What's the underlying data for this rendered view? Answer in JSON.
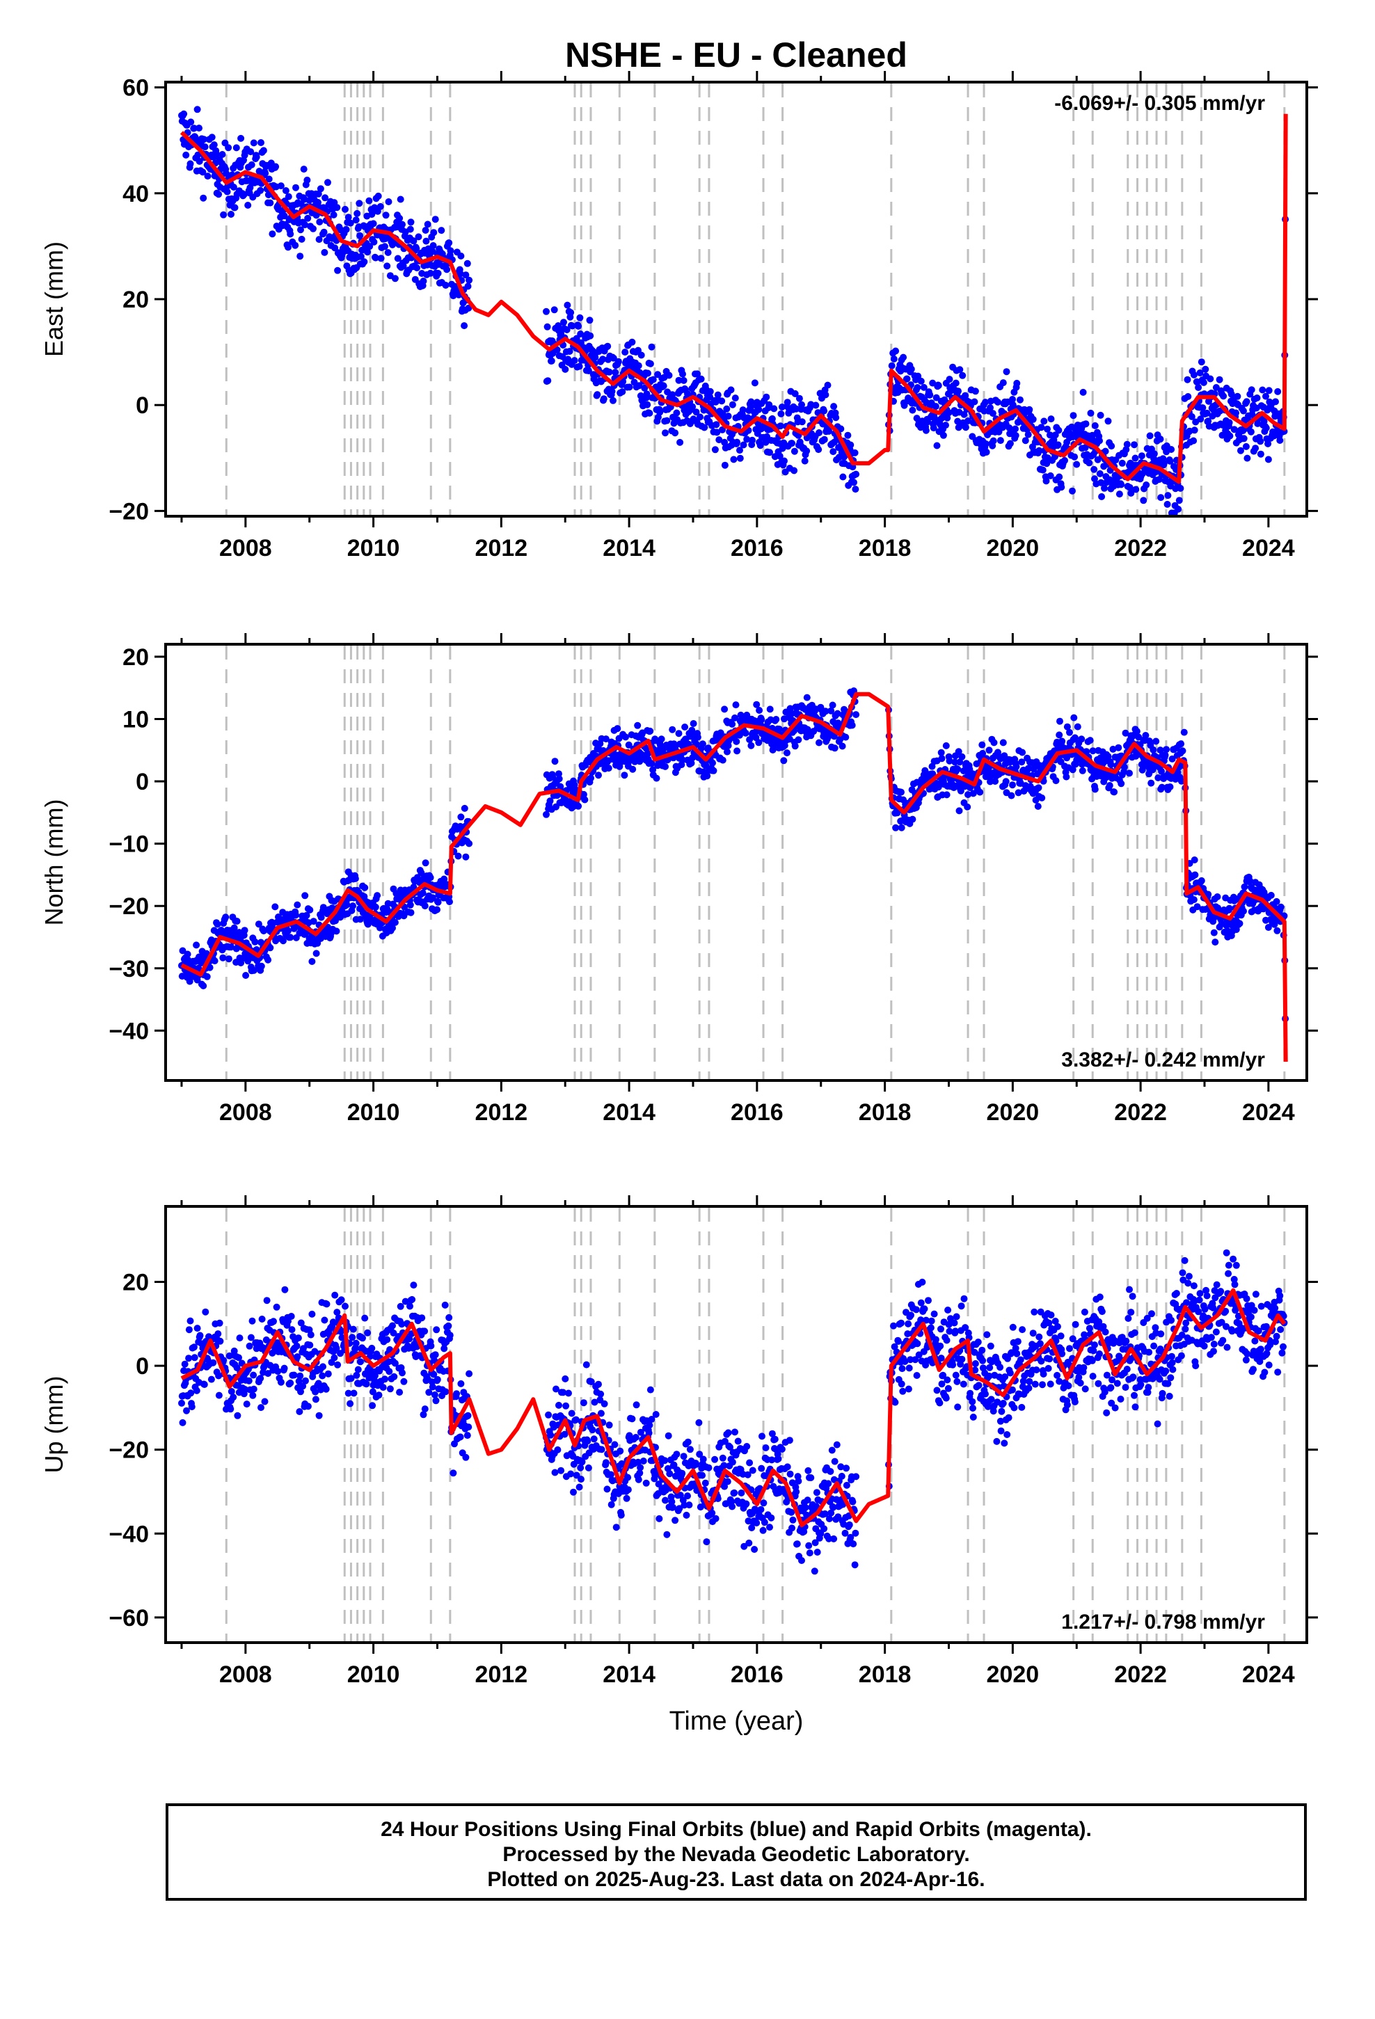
{
  "title": "NSHE  - EU - Cleaned",
  "xlabel": "Time (year)",
  "footer": {
    "line1": "24 Hour Positions Using Final Orbits (blue) and Rapid Orbits (magenta).",
    "line2": "Processed by the Nevada Geodetic Laboratory.",
    "line3": "Plotted on 2025-Aug-23. Last data on 2024-Apr-16."
  },
  "colors": {
    "points": "#0000ff",
    "model": "#ff0000",
    "events": "#c0c0c0"
  },
  "chart_data": [
    {
      "type": "scatter",
      "panel": "east",
      "ylabel": "East (mm)",
      "rate": "-6.069+/- 0.305 mm/yr",
      "rate_position": "top-right",
      "xlim": [
        2006.75,
        2024.6
      ],
      "ylim": [
        -21,
        61
      ],
      "yticks": [
        -20,
        0,
        20,
        40,
        60
      ],
      "xticks": [
        2008,
        2010,
        2012,
        2014,
        2016,
        2018,
        2020,
        2022,
        2024
      ],
      "events": [
        2007.7,
        2009.55,
        2009.65,
        2009.75,
        2009.85,
        2009.95,
        2010.15,
        2010.9,
        2011.2,
        2013.15,
        2013.25,
        2013.4,
        2013.85,
        2014.4,
        2015.1,
        2015.25,
        2016.1,
        2016.4,
        2018.1,
        2019.3,
        2019.55,
        2020.95,
        2021.25,
        2021.8,
        2021.95,
        2022.1,
        2022.25,
        2022.4,
        2022.65,
        2022.95,
        2024.25
      ],
      "gaps": [
        [
          2011.5,
          2012.7
        ],
        [
          2017.55,
          2018.05
        ]
      ],
      "scatter": 3.2,
      "model": [
        [
          2007.0,
          51.5
        ],
        [
          2007.3,
          48
        ],
        [
          2007.7,
          42
        ],
        [
          2008.0,
          44
        ],
        [
          2008.25,
          43
        ],
        [
          2008.5,
          39
        ],
        [
          2008.75,
          35.5
        ],
        [
          2009.0,
          37.5
        ],
        [
          2009.25,
          36
        ],
        [
          2009.5,
          31
        ],
        [
          2009.75,
          30
        ],
        [
          2010.0,
          33
        ],
        [
          2010.25,
          32.5
        ],
        [
          2010.5,
          30
        ],
        [
          2010.75,
          27
        ],
        [
          2011.0,
          28
        ],
        [
          2011.2,
          27
        ],
        [
          2011.4,
          21
        ],
        [
          2011.6,
          18
        ],
        [
          2011.8,
          17
        ],
        [
          2012.0,
          19.5
        ],
        [
          2012.25,
          17
        ],
        [
          2012.5,
          13
        ],
        [
          2012.75,
          10.5
        ],
        [
          2013.0,
          12.5
        ],
        [
          2013.2,
          11
        ],
        [
          2013.5,
          6.5
        ],
        [
          2013.75,
          4
        ],
        [
          2014.0,
          6.5
        ],
        [
          2014.25,
          4.5
        ],
        [
          2014.5,
          1
        ],
        [
          2014.75,
          0
        ],
        [
          2015.0,
          1.5
        ],
        [
          2015.25,
          -0.5
        ],
        [
          2015.5,
          -4
        ],
        [
          2015.75,
          -5
        ],
        [
          2016.0,
          -2.5
        ],
        [
          2016.25,
          -4
        ],
        [
          2016.4,
          -6
        ],
        [
          2016.5,
          -4
        ],
        [
          2016.75,
          -5.5
        ],
        [
          2017.0,
          -2
        ],
        [
          2017.25,
          -5
        ],
        [
          2017.5,
          -11
        ],
        [
          2017.75,
          -11
        ],
        [
          2018.0,
          -8.5
        ],
        [
          2018.05,
          -8.5
        ],
        [
          2018.1,
          6.5
        ],
        [
          2018.35,
          3.5
        ],
        [
          2018.6,
          -0.5
        ],
        [
          2018.85,
          -1.5
        ],
        [
          2019.1,
          1.5
        ],
        [
          2019.35,
          -1
        ],
        [
          2019.55,
          -5
        ],
        [
          2019.8,
          -2.5
        ],
        [
          2020.05,
          -1
        ],
        [
          2020.3,
          -4.5
        ],
        [
          2020.55,
          -8.5
        ],
        [
          2020.8,
          -9.5
        ],
        [
          2021.05,
          -6.5
        ],
        [
          2021.3,
          -8
        ],
        [
          2021.55,
          -11.5
        ],
        [
          2021.8,
          -14
        ],
        [
          2022.05,
          -11
        ],
        [
          2022.3,
          -12
        ],
        [
          2022.6,
          -14.5
        ],
        [
          2022.65,
          -3
        ],
        [
          2022.9,
          1.5
        ],
        [
          2023.15,
          1.5
        ],
        [
          2023.4,
          -2
        ],
        [
          2023.65,
          -4
        ],
        [
          2023.9,
          -1.5
        ],
        [
          2024.1,
          -3.5
        ],
        [
          2024.25,
          -4.5
        ],
        [
          2024.27,
          55
        ]
      ]
    },
    {
      "type": "scatter",
      "panel": "north",
      "ylabel": "North (mm)",
      "rate": "3.382+/- 0.242 mm/yr",
      "rate_position": "bottom-right",
      "xlim": [
        2006.75,
        2024.6
      ],
      "ylim": [
        -48,
        22
      ],
      "yticks": [
        -40,
        -30,
        -20,
        -10,
        0,
        10,
        20
      ],
      "xticks": [
        2008,
        2010,
        2012,
        2014,
        2016,
        2018,
        2020,
        2022,
        2024
      ],
      "events": [
        2007.7,
        2009.55,
        2009.65,
        2009.75,
        2009.85,
        2009.95,
        2010.15,
        2010.9,
        2011.2,
        2013.15,
        2013.25,
        2013.4,
        2013.85,
        2014.4,
        2015.1,
        2015.25,
        2016.1,
        2016.4,
        2018.1,
        2019.3,
        2019.55,
        2020.95,
        2021.25,
        2021.8,
        2021.95,
        2022.1,
        2022.25,
        2022.4,
        2022.65,
        2022.95,
        2024.25
      ],
      "gaps": [
        [
          2011.5,
          2012.7
        ],
        [
          2017.55,
          2018.05
        ]
      ],
      "scatter": 1.8,
      "model": [
        [
          2007.0,
          -29.5
        ],
        [
          2007.3,
          -31
        ],
        [
          2007.6,
          -25
        ],
        [
          2007.9,
          -26
        ],
        [
          2008.2,
          -28
        ],
        [
          2008.5,
          -23.5
        ],
        [
          2008.8,
          -22.5
        ],
        [
          2009.1,
          -24.5
        ],
        [
          2009.4,
          -21
        ],
        [
          2009.6,
          -17.5
        ],
        [
          2009.75,
          -18.5
        ],
        [
          2009.9,
          -20.5
        ],
        [
          2010.2,
          -22.5
        ],
        [
          2010.5,
          -19
        ],
        [
          2010.8,
          -16.5
        ],
        [
          2011.0,
          -17.5
        ],
        [
          2011.2,
          -18
        ],
        [
          2011.22,
          -10.5
        ],
        [
          2011.5,
          -7
        ],
        [
          2011.75,
          -4
        ],
        [
          2012.0,
          -5
        ],
        [
          2012.3,
          -7
        ],
        [
          2012.6,
          -2
        ],
        [
          2012.9,
          -1.5
        ],
        [
          2013.1,
          -2.5
        ],
        [
          2013.2,
          -3
        ],
        [
          2013.25,
          0
        ],
        [
          2013.5,
          3.5
        ],
        [
          2013.8,
          5.5
        ],
        [
          2014.0,
          4.5
        ],
        [
          2014.3,
          6.5
        ],
        [
          2014.4,
          3.5
        ],
        [
          2014.7,
          4.5
        ],
        [
          2015.0,
          5.5
        ],
        [
          2015.2,
          3.5
        ],
        [
          2015.5,
          7
        ],
        [
          2015.8,
          9
        ],
        [
          2016.1,
          8.5
        ],
        [
          2016.4,
          7
        ],
        [
          2016.7,
          10.5
        ],
        [
          2017.0,
          9.5
        ],
        [
          2017.3,
          7.5
        ],
        [
          2017.55,
          14
        ],
        [
          2017.75,
          14
        ],
        [
          2018.05,
          12
        ],
        [
          2018.1,
          -3
        ],
        [
          2018.3,
          -5
        ],
        [
          2018.6,
          -1
        ],
        [
          2018.9,
          1.5
        ],
        [
          2019.2,
          0.5
        ],
        [
          2019.4,
          -0.5
        ],
        [
          2019.55,
          3.5
        ],
        [
          2019.8,
          2
        ],
        [
          2020.1,
          1
        ],
        [
          2020.4,
          0
        ],
        [
          2020.7,
          4.5
        ],
        [
          2021.0,
          5
        ],
        [
          2021.3,
          2.5
        ],
        [
          2021.6,
          1.5
        ],
        [
          2021.9,
          6
        ],
        [
          2022.1,
          4
        ],
        [
          2022.3,
          3
        ],
        [
          2022.5,
          1.5
        ],
        [
          2022.6,
          3.5
        ],
        [
          2022.7,
          3
        ],
        [
          2022.72,
          -18
        ],
        [
          2022.9,
          -17
        ],
        [
          2023.15,
          -21
        ],
        [
          2023.4,
          -22
        ],
        [
          2023.65,
          -18
        ],
        [
          2023.9,
          -19
        ],
        [
          2024.1,
          -21
        ],
        [
          2024.25,
          -22.5
        ],
        [
          2024.27,
          -45
        ]
      ]
    },
    {
      "type": "scatter",
      "panel": "up",
      "ylabel": "Up (mm)",
      "rate": "1.217+/- 0.798 mm/yr",
      "rate_position": "bottom-right",
      "xlim": [
        2006.75,
        2024.6
      ],
      "ylim": [
        -66,
        38
      ],
      "yticks": [
        -60,
        -40,
        -20,
        0,
        20
      ],
      "xticks": [
        2008,
        2010,
        2012,
        2014,
        2016,
        2018,
        2020,
        2022,
        2024
      ],
      "events": [
        2007.7,
        2009.55,
        2009.65,
        2009.75,
        2009.85,
        2009.95,
        2010.15,
        2010.9,
        2011.2,
        2013.15,
        2013.25,
        2013.4,
        2013.85,
        2014.4,
        2015.1,
        2015.25,
        2016.1,
        2016.4,
        2018.1,
        2019.3,
        2019.55,
        2020.95,
        2021.25,
        2021.8,
        2021.95,
        2022.1,
        2022.25,
        2022.4,
        2022.65,
        2022.95,
        2024.25
      ],
      "gaps": [
        [
          2011.5,
          2012.7
        ],
        [
          2017.55,
          2018.05
        ]
      ],
      "scatter": 5.5,
      "model": [
        [
          2007.0,
          -3
        ],
        [
          2007.25,
          -1
        ],
        [
          2007.45,
          6
        ],
        [
          2007.75,
          -5
        ],
        [
          2008.0,
          0
        ],
        [
          2008.25,
          1
        ],
        [
          2008.5,
          8
        ],
        [
          2008.75,
          1
        ],
        [
          2009.0,
          -1
        ],
        [
          2009.25,
          4
        ],
        [
          2009.55,
          12
        ],
        [
          2009.6,
          1
        ],
        [
          2009.8,
          3
        ],
        [
          2010.0,
          0
        ],
        [
          2010.3,
          3
        ],
        [
          2010.6,
          10
        ],
        [
          2010.9,
          -1
        ],
        [
          2011.1,
          2
        ],
        [
          2011.2,
          3
        ],
        [
          2011.22,
          -16
        ],
        [
          2011.5,
          -8
        ],
        [
          2011.8,
          -21
        ],
        [
          2012.0,
          -20
        ],
        [
          2012.25,
          -15
        ],
        [
          2012.5,
          -8
        ],
        [
          2012.75,
          -20
        ],
        [
          2013.0,
          -13
        ],
        [
          2013.15,
          -19
        ],
        [
          2013.3,
          -13
        ],
        [
          2013.5,
          -12
        ],
        [
          2013.85,
          -28
        ],
        [
          2014.0,
          -22
        ],
        [
          2014.3,
          -17
        ],
        [
          2014.5,
          -26
        ],
        [
          2014.75,
          -30
        ],
        [
          2015.0,
          -25
        ],
        [
          2015.25,
          -34
        ],
        [
          2015.5,
          -25
        ],
        [
          2015.75,
          -28
        ],
        [
          2016.0,
          -33
        ],
        [
          2016.25,
          -25
        ],
        [
          2016.45,
          -28
        ],
        [
          2016.7,
          -38
        ],
        [
          2016.95,
          -35
        ],
        [
          2017.25,
          -28
        ],
        [
          2017.55,
          -37
        ],
        [
          2017.75,
          -33
        ],
        [
          2018.05,
          -31
        ],
        [
          2018.1,
          0
        ],
        [
          2018.35,
          5
        ],
        [
          2018.6,
          10
        ],
        [
          2018.85,
          -1
        ],
        [
          2019.1,
          4
        ],
        [
          2019.3,
          6
        ],
        [
          2019.35,
          -2
        ],
        [
          2019.6,
          -4
        ],
        [
          2019.85,
          -7
        ],
        [
          2020.1,
          -1
        ],
        [
          2020.35,
          2
        ],
        [
          2020.6,
          6
        ],
        [
          2020.85,
          -3
        ],
        [
          2021.1,
          5
        ],
        [
          2021.35,
          8
        ],
        [
          2021.6,
          -2
        ],
        [
          2021.85,
          4
        ],
        [
          2022.1,
          -2
        ],
        [
          2022.35,
          2
        ],
        [
          2022.6,
          10
        ],
        [
          2022.7,
          14
        ],
        [
          2022.95,
          9
        ],
        [
          2023.2,
          12
        ],
        [
          2023.45,
          18
        ],
        [
          2023.7,
          8
        ],
        [
          2023.95,
          6
        ],
        [
          2024.15,
          12
        ],
        [
          2024.25,
          10
        ]
      ]
    }
  ]
}
